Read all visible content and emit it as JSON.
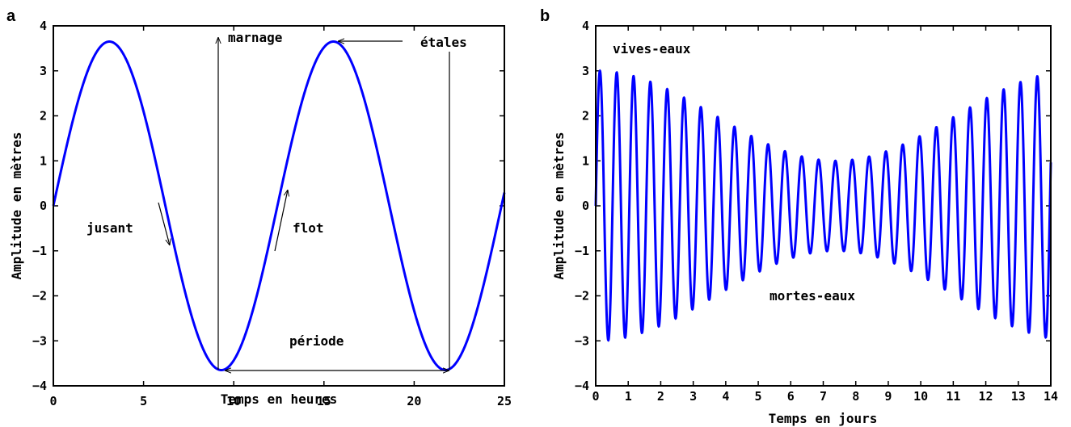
{
  "chart_data": [
    {
      "panel": "a",
      "type": "line",
      "xlabel": "Temps en heures",
      "ylabel": "Amplitude en mètres",
      "xlim": [
        0,
        25
      ],
      "ylim": [
        -4,
        4
      ],
      "xticks": [
        0,
        5,
        10,
        15,
        20,
        25
      ],
      "yticks": [
        -4,
        -3,
        -2,
        -1,
        0,
        1,
        2,
        3,
        4
      ],
      "grid": false,
      "series": [
        {
          "color": "#0000ff",
          "function": "y = 3.65 * sin(2π·t / 12.42)",
          "x_range": [
            0,
            25
          ],
          "amplitude": 3.65,
          "period": 12.42
        }
      ],
      "annotations": {
        "marnage": "marnage",
        "etales": "étales",
        "jusant": "jusant",
        "flot": "flot",
        "periode": "période"
      }
    },
    {
      "panel": "b",
      "type": "line",
      "xlabel": "Temps en jours",
      "ylabel": "Amplitude en mètres",
      "xlim": [
        0,
        14
      ],
      "ylim": [
        -4,
        4
      ],
      "xticks": [
        0,
        1,
        2,
        3,
        4,
        5,
        6,
        7,
        8,
        9,
        10,
        11,
        12,
        13,
        14
      ],
      "yticks": [
        -4,
        -3,
        -2,
        -1,
        0,
        1,
        2,
        3,
        4
      ],
      "grid": false,
      "series": [
        {
          "color": "#0000ff",
          "function": "y = (2.0 + 1.0·cos(2π·t / 14.77)) · sin(2π·t·24 / 12.42)",
          "x_range": [
            0,
            14
          ]
        }
      ],
      "annotations": {
        "vives": "vives-eaux",
        "mortes": "mortes-eaux"
      }
    }
  ]
}
